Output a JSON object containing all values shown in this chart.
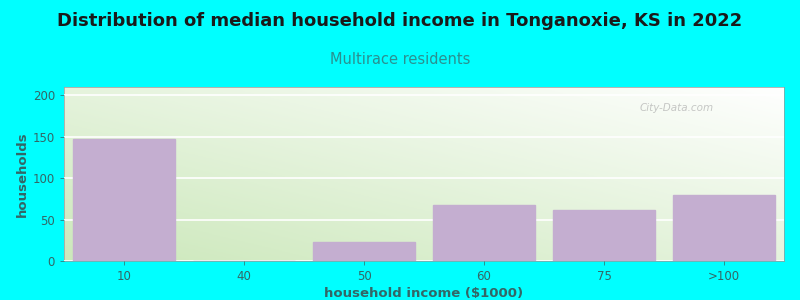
{
  "title": "Distribution of median household income in Tonganoxie, KS in 2022",
  "subtitle": "Multirace residents",
  "xlabel": "household income ($1000)",
  "ylabel": "households",
  "categories": [
    "10",
    "40",
    "50",
    "60",
    "75",
    ">100"
  ],
  "values": [
    147,
    0,
    23,
    67,
    62,
    80
  ],
  "bar_color": "#c4aed0",
  "background_color": "#00FFFF",
  "plot_bg_bottom_left": "#cce8bb",
  "plot_bg_top_right": "#ffffff",
  "title_color": "#1a1a1a",
  "subtitle_color": "#2a9090",
  "axis_label_color": "#336666",
  "tick_color": "#336666",
  "grid_color": "#ffffff",
  "ylim": [
    0,
    210
  ],
  "yticks": [
    0,
    50,
    100,
    150,
    200
  ],
  "title_fontsize": 13,
  "subtitle_fontsize": 10.5,
  "axis_label_fontsize": 9.5,
  "tick_fontsize": 8.5,
  "bar_width": 0.85,
  "watermark": "City-Data.com"
}
